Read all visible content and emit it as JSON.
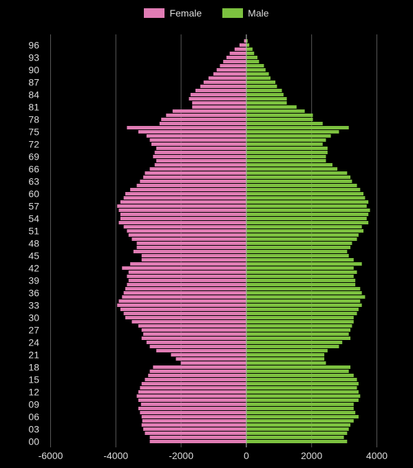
{
  "chart_data": {
    "type": "bar",
    "orientation": "horizontal",
    "title": "",
    "xlabel": "",
    "ylabel": "",
    "xlim": [
      -6000,
      4000
    ],
    "x_ticks": [
      -6000,
      -4000,
      -2000,
      0,
      2000,
      4000
    ],
    "x_tick_labels": [
      "-6000",
      "-4000",
      "-2000",
      "0",
      "2000",
      "4000"
    ],
    "age_tick_labels": [
      "00",
      "03",
      "06",
      "09",
      "12",
      "15",
      "18",
      "21",
      "24",
      "27",
      "30",
      "33",
      "36",
      "39",
      "42",
      "45",
      "48",
      "51",
      "54",
      "57",
      "60",
      "63",
      "66",
      "69",
      "72",
      "75",
      "78",
      "81",
      "84",
      "87",
      "90",
      "93",
      "96"
    ],
    "grid": true,
    "legend_position": "top",
    "colors": {
      "female": "#e07cb4",
      "male": "#7cc13f",
      "background": "#000000",
      "grid": "#5a5a5a",
      "text": "#dddddd"
    },
    "categories": [
      0,
      1,
      2,
      3,
      4,
      5,
      6,
      7,
      8,
      9,
      10,
      11,
      12,
      13,
      14,
      15,
      16,
      17,
      18,
      19,
      20,
      21,
      22,
      23,
      24,
      25,
      26,
      27,
      28,
      29,
      30,
      31,
      32,
      33,
      34,
      35,
      36,
      37,
      38,
      39,
      40,
      41,
      42,
      43,
      44,
      45,
      46,
      47,
      48,
      49,
      50,
      51,
      52,
      53,
      54,
      55,
      56,
      57,
      58,
      59,
      60,
      61,
      62,
      63,
      64,
      65,
      66,
      67,
      68,
      69,
      70,
      71,
      72,
      73,
      74,
      75,
      76,
      77,
      78,
      79,
      80,
      81,
      82,
      83,
      84,
      85,
      86,
      87,
      88,
      89,
      90,
      91,
      92,
      93,
      94,
      95,
      96,
      97
    ],
    "series": [
      {
        "name": "Female",
        "values": [
          -2950,
          -2950,
          -3100,
          -3150,
          -3200,
          -3180,
          -3200,
          -3250,
          -3300,
          -3220,
          -3300,
          -3350,
          -3300,
          -3250,
          -3200,
          -3100,
          -3000,
          -2950,
          -2850,
          -2000,
          -2150,
          -2300,
          -2750,
          -2950,
          -3050,
          -3200,
          -3150,
          -3200,
          -3300,
          -3500,
          -3700,
          -3750,
          -3850,
          -3950,
          -3900,
          -3800,
          -3750,
          -3700,
          -3650,
          -3600,
          -3650,
          -3600,
          -3800,
          -3550,
          -3200,
          -3200,
          -3450,
          -3350,
          -3350,
          -3500,
          -3600,
          -3650,
          -3750,
          -3900,
          -3850,
          -3850,
          -3900,
          -3950,
          -3850,
          -3750,
          -3700,
          -3550,
          -3350,
          -3250,
          -3150,
          -3100,
          -2950,
          -2800,
          -2750,
          -2850,
          -2800,
          -2750,
          -2900,
          -2950,
          -3050,
          -3300,
          -3650,
          -2650,
          -2600,
          -2450,
          -2250,
          -1650,
          -1650,
          -1750,
          -1700,
          -1550,
          -1400,
          -1300,
          -1150,
          -1000,
          -900,
          -800,
          -700,
          -600,
          -500,
          -350,
          -200,
          -60
        ]
      },
      {
        "name": "Male",
        "values": [
          3100,
          3000,
          3100,
          3150,
          3200,
          3300,
          3450,
          3350,
          3300,
          3300,
          3450,
          3500,
          3450,
          3400,
          3450,
          3400,
          3300,
          3150,
          3200,
          2450,
          2400,
          2400,
          2500,
          2850,
          2950,
          3200,
          3150,
          3200,
          3250,
          3300,
          3300,
          3400,
          3450,
          3550,
          3500,
          3650,
          3550,
          3500,
          3350,
          3350,
          3300,
          3400,
          3300,
          3550,
          3300,
          3150,
          3100,
          3200,
          3250,
          3400,
          3450,
          3600,
          3550,
          3750,
          3700,
          3750,
          3800,
          3700,
          3750,
          3650,
          3600,
          3500,
          3400,
          3250,
          3200,
          3100,
          2800,
          2650,
          2450,
          2450,
          2500,
          2500,
          2350,
          2450,
          2600,
          2850,
          3150,
          2350,
          2050,
          2050,
          1800,
          1550,
          1250,
          1250,
          1150,
          1100,
          950,
          900,
          750,
          700,
          600,
          550,
          400,
          350,
          250,
          200,
          100,
          50
        ]
      }
    ]
  },
  "legend": {
    "female_label": "Female",
    "male_label": "Male"
  }
}
